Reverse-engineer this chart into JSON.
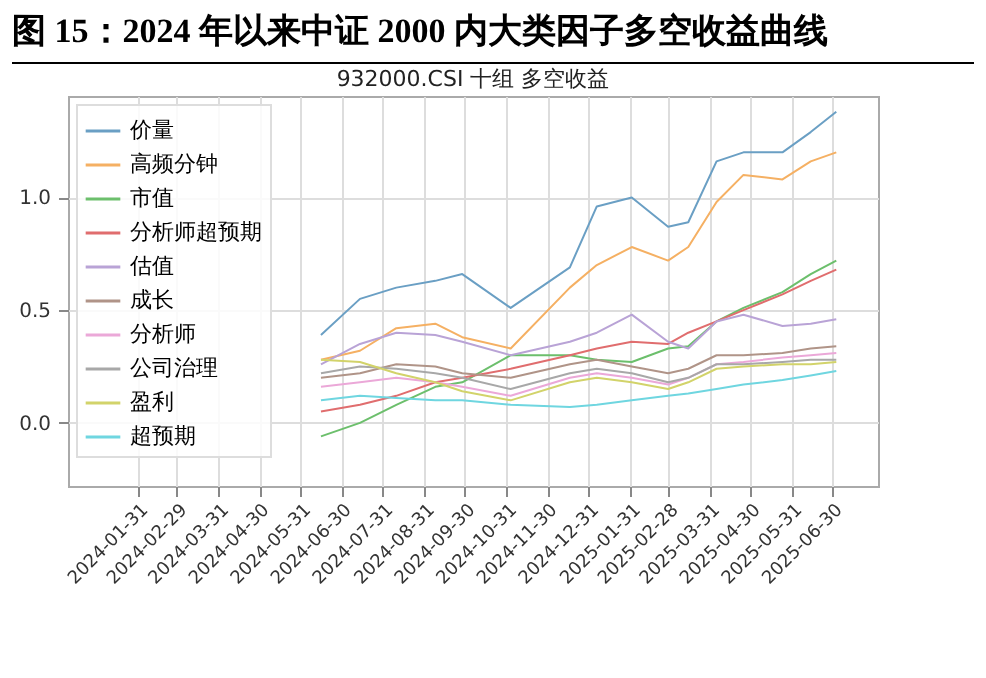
{
  "chart_data": {
    "type": "line",
    "title": "图 15：2024 年以来中证 2000 内大类因子多空收益曲线",
    "subtitle": "932000.CSI  十组 多空收益",
    "x": [
      "2024-06-15",
      "2024-07-14",
      "2024-08-10",
      "2024-09-08",
      "2024-09-28",
      "2024-11-03",
      "2024-12-17",
      "2025-01-06",
      "2025-02-01",
      "2025-02-28",
      "2025-03-15",
      "2025-04-05",
      "2025-04-25",
      "2025-05-24",
      "2025-06-14",
      "2025-07-03"
    ],
    "series": [
      {
        "name": "价量",
        "color": "#6a9fc4",
        "values": [
          0.39,
          0.55,
          0.6,
          0.63,
          0.66,
          0.51,
          0.69,
          0.96,
          1.0,
          0.87,
          0.89,
          1.16,
          1.2,
          1.2,
          1.29,
          1.38
        ]
      },
      {
        "name": "高频分钟",
        "color": "#f5b063",
        "values": [
          0.28,
          0.32,
          0.42,
          0.44,
          0.38,
          0.33,
          0.6,
          0.7,
          0.78,
          0.72,
          0.78,
          0.98,
          1.1,
          1.08,
          1.16,
          1.2
        ]
      },
      {
        "name": "市值",
        "color": "#6cbf6c",
        "values": [
          -0.06,
          0.0,
          0.08,
          0.16,
          0.18,
          0.3,
          0.3,
          0.28,
          0.27,
          0.33,
          0.34,
          0.45,
          0.51,
          0.58,
          0.66,
          0.72
        ]
      },
      {
        "name": "分析师超预期",
        "color": "#e06d6e",
        "values": [
          0.05,
          0.08,
          0.12,
          0.18,
          0.2,
          0.24,
          0.3,
          0.33,
          0.36,
          0.35,
          0.4,
          0.45,
          0.5,
          0.57,
          0.63,
          0.68
        ]
      },
      {
        "name": "估值",
        "color": "#b9a3d6",
        "values": [
          0.26,
          0.35,
          0.4,
          0.39,
          0.36,
          0.3,
          0.36,
          0.4,
          0.48,
          0.36,
          0.33,
          0.45,
          0.48,
          0.43,
          0.44,
          0.46
        ]
      },
      {
        "name": "成长",
        "color": "#b09488",
        "values": [
          0.2,
          0.22,
          0.26,
          0.25,
          0.22,
          0.2,
          0.26,
          0.28,
          0.25,
          0.22,
          0.24,
          0.3,
          0.3,
          0.31,
          0.33,
          0.34
        ]
      },
      {
        "name": "分析师",
        "color": "#eba8d8",
        "values": [
          0.16,
          0.18,
          0.2,
          0.18,
          0.16,
          0.12,
          0.2,
          0.22,
          0.2,
          0.17,
          0.2,
          0.26,
          0.27,
          0.29,
          0.3,
          0.31
        ]
      },
      {
        "name": "公司治理",
        "color": "#a8a8a8",
        "values": [
          0.22,
          0.25,
          0.24,
          0.22,
          0.2,
          0.15,
          0.22,
          0.24,
          0.22,
          0.18,
          0.2,
          0.26,
          0.26,
          0.27,
          0.28,
          0.28
        ]
      },
      {
        "name": "盈利",
        "color": "#d2d36a",
        "values": [
          0.28,
          0.27,
          0.22,
          0.18,
          0.14,
          0.1,
          0.18,
          0.2,
          0.18,
          0.15,
          0.18,
          0.24,
          0.25,
          0.26,
          0.26,
          0.27
        ]
      },
      {
        "name": "超预期",
        "color": "#6fd6e0",
        "values": [
          0.1,
          0.12,
          0.11,
          0.1,
          0.1,
          0.08,
          0.07,
          0.08,
          0.1,
          0.12,
          0.13,
          0.15,
          0.17,
          0.19,
          0.21,
          0.23
        ]
      }
    ],
    "xlim": [
      "2023-12-10",
      "2025-08-03"
    ],
    "xticks": [
      "2024-01-31",
      "2024-02-29",
      "2024-03-31",
      "2024-04-30",
      "2024-05-31",
      "2024-06-30",
      "2024-07-31",
      "2024-08-31",
      "2024-09-30",
      "2024-10-31",
      "2024-11-30",
      "2024-12-31",
      "2025-01-31",
      "2025-02-28",
      "2025-03-31",
      "2025-04-30",
      "2025-05-31",
      "2025-06-30"
    ],
    "ylim": [
      -0.28,
      1.45
    ],
    "yticks": [
      {
        "value": 0,
        "label": "0.0"
      },
      {
        "value": 0.5,
        "label": "0.5"
      },
      {
        "value": 1,
        "label": "1.0"
      }
    ],
    "grid": true,
    "legend": "top left"
  }
}
